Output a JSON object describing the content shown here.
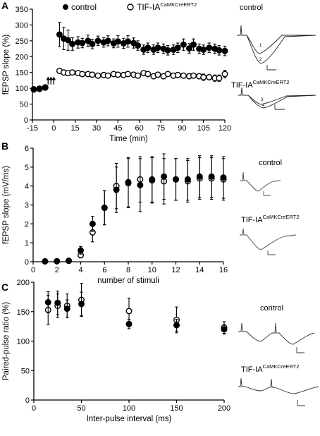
{
  "panels": [
    {
      "letter": "A",
      "legend": [
        {
          "label": "control",
          "marker": "filled"
        },
        {
          "label": "TIF-IA",
          "sup": "CaMKCreERT2",
          "marker": "open"
        }
      ],
      "traces": [
        {
          "label": "control",
          "marks": [
            "1",
            "2"
          ]
        },
        {
          "label": "TIF-IA",
          "sup": "CaMKCreERT2",
          "marks": [
            "3",
            "4"
          ]
        }
      ]
    },
    {
      "letter": "B",
      "traces": [
        {
          "label": "control"
        },
        {
          "label": "TIF-IA",
          "sup": "CaMKCreERT2"
        }
      ]
    },
    {
      "letter": "C",
      "traces": [
        {
          "label": "control"
        },
        {
          "label": "TIF-IA",
          "sup": "CaMKCreERT2"
        }
      ]
    }
  ],
  "chart_data": [
    {
      "type": "scatter",
      "xlabel": "Time (min)",
      "ylabel": "fEPSP slope (%)",
      "xlim": [
        -15,
        120
      ],
      "ylim": [
        0,
        350
      ],
      "xticks": [
        "-15",
        "0",
        "15",
        "30",
        "45",
        "60",
        "75",
        "90",
        "105",
        "120"
      ],
      "yticks": [
        "0",
        "50",
        "100",
        "150",
        "200",
        "250",
        "300",
        "350"
      ],
      "arrows_at_x": [
        -4,
        -2,
        0
      ],
      "series": [
        {
          "name": "control",
          "marker": "filled",
          "x": [
            -14,
            -10,
            -6,
            4,
            7,
            10,
            13,
            17,
            20,
            24,
            27,
            31,
            35,
            38,
            42,
            45,
            49,
            52,
            56,
            59,
            63,
            66,
            70,
            73,
            77,
            80,
            84,
            87,
            91,
            95,
            98,
            102,
            105,
            109,
            113,
            116,
            120
          ],
          "y": [
            97,
            99,
            103,
            270,
            257,
            252,
            240,
            245,
            243,
            250,
            240,
            250,
            245,
            250,
            242,
            248,
            242,
            248,
            243,
            235,
            222,
            228,
            222,
            228,
            225,
            220,
            222,
            228,
            238,
            226,
            238,
            225,
            222,
            228,
            225,
            220,
            218
          ],
          "err": [
            5,
            5,
            6,
            38,
            35,
            32,
            20,
            18,
            15,
            18,
            15,
            15,
            15,
            16,
            14,
            18,
            16,
            18,
            16,
            15,
            15,
            15,
            15,
            15,
            15,
            15,
            15,
            15,
            18,
            15,
            18,
            15,
            15,
            15,
            15,
            15,
            15
          ]
        },
        {
          "name": "TIF-IA CaMKCreERT2",
          "marker": "open",
          "x": [
            -14,
            -10,
            -6,
            4,
            7,
            10,
            13,
            17,
            20,
            24,
            27,
            31,
            35,
            38,
            42,
            45,
            49,
            52,
            56,
            59,
            63,
            66,
            70,
            73,
            77,
            80,
            84,
            87,
            91,
            95,
            98,
            102,
            105,
            109,
            113,
            116,
            120
          ],
          "y": [
            96,
            98,
            102,
            155,
            150,
            148,
            150,
            148,
            145,
            145,
            143,
            140,
            142,
            140,
            145,
            143,
            142,
            145,
            143,
            140,
            148,
            145,
            138,
            143,
            138,
            145,
            140,
            142,
            140,
            138,
            140,
            138,
            135,
            135,
            132,
            132,
            145
          ],
          "err": [
            4,
            4,
            5,
            8,
            8,
            7,
            7,
            7,
            6,
            6,
            6,
            6,
            6,
            6,
            6,
            6,
            6,
            6,
            6,
            6,
            6,
            6,
            6,
            6,
            6,
            6,
            6,
            6,
            6,
            6,
            6,
            6,
            10,
            8,
            10,
            10,
            12
          ]
        }
      ]
    },
    {
      "type": "scatter",
      "xlabel": "number of stimuli",
      "ylabel": "fEPSP slope (mV/ms)",
      "xlim": [
        0,
        16
      ],
      "ylim": [
        0,
        6
      ],
      "xticks": [
        "0",
        "2",
        "4",
        "6",
        "8",
        "10",
        "12",
        "14",
        "16"
      ],
      "yticks": [
        "0",
        "1",
        "2",
        "3",
        "4",
        "5",
        "6"
      ],
      "series": [
        {
          "name": "control",
          "marker": "filled",
          "x": [
            1,
            2,
            3,
            4,
            5,
            6,
            7,
            8,
            9,
            10,
            11,
            12,
            13,
            14,
            15,
            16
          ],
          "y": [
            0.02,
            0.03,
            0.05,
            0.6,
            2.0,
            2.85,
            3.8,
            4.2,
            4.05,
            4.3,
            4.5,
            4.35,
            4.35,
            4.5,
            4.5,
            4.45
          ],
          "err": [
            0.02,
            0.03,
            0.04,
            0.2,
            0.4,
            0.9,
            1.2,
            1.3,
            1.4,
            1.2,
            1.2,
            1.1,
            1.1,
            1.1,
            1.1,
            1.1
          ]
        },
        {
          "name": "TIF-IA CaMKCreERT2",
          "marker": "open",
          "x": [
            1,
            2,
            3,
            4,
            5,
            6,
            7,
            8,
            9,
            10,
            11,
            12,
            13,
            14,
            15,
            16
          ],
          "y": [
            0.02,
            0.03,
            0.05,
            0.35,
            1.55,
            2.85,
            4.0,
            4.15,
            4.35,
            4.35,
            4.25,
            4.35,
            4.25,
            4.4,
            4.4,
            4.35
          ],
          "err": [
            0.02,
            0.03,
            0.04,
            0.15,
            0.5,
            0.9,
            1.2,
            1.3,
            1.2,
            1.2,
            1.2,
            1.1,
            1.1,
            1.1,
            1.1,
            1.1
          ]
        }
      ]
    },
    {
      "type": "scatter",
      "xlabel": "Inter-pulse interval (ms)",
      "ylabel": "Paired-pulse ratio (%)",
      "xlim": [
        0,
        200
      ],
      "ylim": [
        0,
        200
      ],
      "xticks": [
        "0",
        "50",
        "100",
        "150",
        "200"
      ],
      "yticks": [
        "0",
        "50",
        "100",
        "150",
        "200"
      ],
      "series": [
        {
          "name": "control",
          "marker": "filled",
          "x": [
            15,
            25,
            35,
            50,
            100,
            150,
            200
          ],
          "y": [
            166,
            165,
            155,
            163,
            129,
            127,
            120
          ],
          "err": [
            18,
            20,
            15,
            20,
            8,
            10,
            8
          ]
        },
        {
          "name": "TIF-IA CaMKCreERT2",
          "marker": "open",
          "x": [
            15,
            25,
            35,
            50,
            100,
            150,
            200
          ],
          "y": [
            153,
            160,
            160,
            170,
            151,
            136,
            123
          ],
          "err": [
            25,
            20,
            20,
            28,
            22,
            22,
            10
          ]
        }
      ]
    }
  ]
}
